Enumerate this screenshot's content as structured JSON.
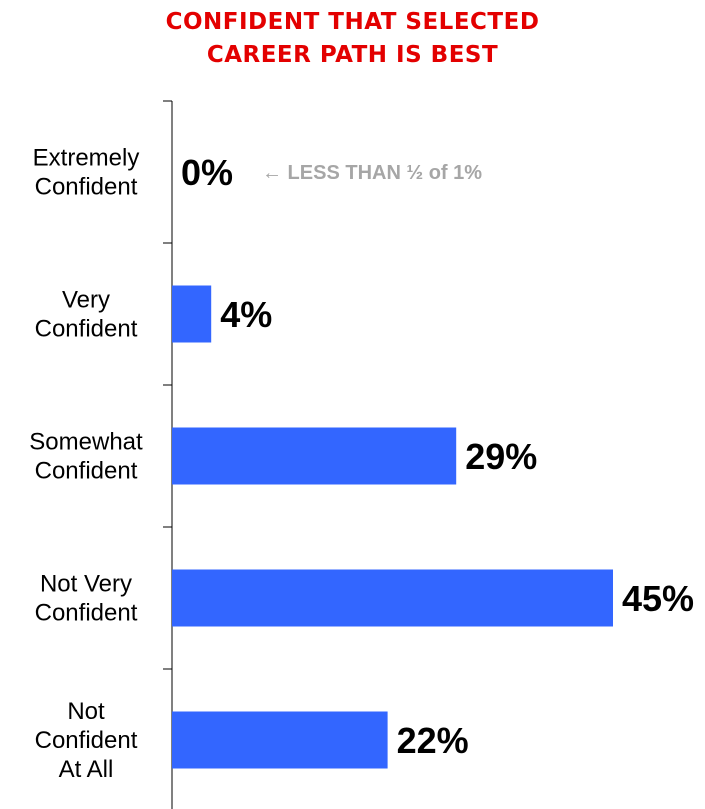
{
  "chart_data": {
    "type": "bar",
    "orientation": "horizontal",
    "title_lines": [
      "CONFIDENT THAT SELECTED",
      "CAREER PATH IS BEST"
    ],
    "categories": [
      [
        "Extremely",
        "Confident"
      ],
      [
        "Very",
        "Confident"
      ],
      [
        "Somewhat",
        "Confident"
      ],
      [
        "Not Very",
        "Confident"
      ],
      [
        "Not",
        "Confident",
        "At All"
      ]
    ],
    "values": [
      0,
      4,
      29,
      45,
      22
    ],
    "value_labels": [
      "0%",
      "4%",
      "29%",
      "45%",
      "22%"
    ],
    "annotation": "← LESS THAN ½ of 1%",
    "xlim": [
      0,
      45
    ],
    "grid": false,
    "legend": "none",
    "bar_color": "#3366ff",
    "title_color": "#e30000",
    "annotation_color": "#a6a6a6"
  }
}
